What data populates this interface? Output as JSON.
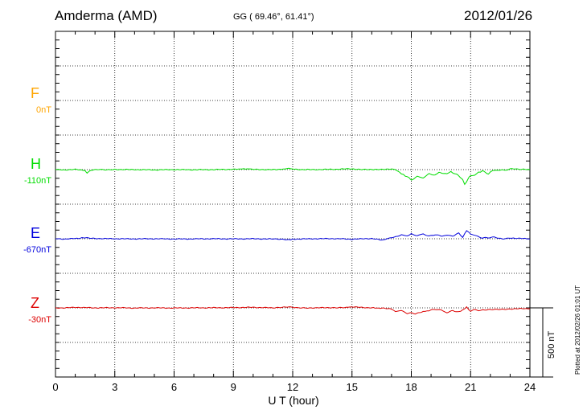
{
  "header": {
    "station": "Amderma (AMD)",
    "coords": "GG ( 69.46°,  61.41°)",
    "date": "2012/01/26"
  },
  "side_note": "Plotted at 2012/02/26 01:01 UT",
  "scale_label": "500 nT",
  "chart_data": {
    "type": "line",
    "xlabel": "U T (hour)",
    "xlim": [
      0,
      24
    ],
    "xticks": [
      "0",
      "3",
      "6",
      "9",
      "12",
      "15",
      "18",
      "21",
      "24"
    ],
    "grid": true,
    "channels": [
      {
        "letter": "F",
        "offset": "0nT",
        "color": "#ffa500",
        "values": []
      },
      {
        "letter": "H",
        "offset": "-110nT",
        "color": "#00dd00",
        "values": [
          [
            0,
            0
          ],
          [
            0.5,
            -2
          ],
          [
            1,
            1
          ],
          [
            1.5,
            -5
          ],
          [
            1.6,
            -25
          ],
          [
            1.8,
            -3
          ],
          [
            2.2,
            3
          ],
          [
            2.6,
            -1
          ],
          [
            3,
            1
          ],
          [
            4,
            0
          ],
          [
            5,
            -2
          ],
          [
            6,
            0
          ],
          [
            7,
            -1
          ],
          [
            8,
            0
          ],
          [
            9,
            3
          ],
          [
            9.7,
            6
          ],
          [
            10,
            1
          ],
          [
            11,
            0
          ],
          [
            11.6,
            3
          ],
          [
            11.8,
            10
          ],
          [
            12,
            4
          ],
          [
            12.5,
            0
          ],
          [
            13,
            0
          ],
          [
            14,
            2
          ],
          [
            14.5,
            4
          ],
          [
            15,
            6
          ],
          [
            15.5,
            0
          ],
          [
            16,
            2
          ],
          [
            16.5,
            0
          ],
          [
            17,
            6
          ],
          [
            17.3,
            -8
          ],
          [
            17.5,
            -30
          ],
          [
            17.7,
            -45
          ],
          [
            17.9,
            -60
          ],
          [
            18,
            -75
          ],
          [
            18.3,
            -50
          ],
          [
            18.6,
            -60
          ],
          [
            18.9,
            -30
          ],
          [
            19.2,
            -40
          ],
          [
            19.4,
            -20
          ],
          [
            19.8,
            -30
          ],
          [
            20,
            -15
          ],
          [
            20.3,
            -35
          ],
          [
            20.6,
            -70
          ],
          [
            20.7,
            -110
          ],
          [
            20.9,
            -60
          ],
          [
            21,
            -45
          ],
          [
            21.2,
            -40
          ],
          [
            21.4,
            -20
          ],
          [
            21.6,
            -10
          ],
          [
            21.9,
            -30
          ],
          [
            22.1,
            -8
          ],
          [
            22.4,
            -5
          ],
          [
            22.8,
            -3
          ],
          [
            23.1,
            6
          ],
          [
            23.5,
            2
          ],
          [
            24,
            0
          ]
        ]
      },
      {
        "letter": "E",
        "offset": "-670nT",
        "color": "#0000dd",
        "values": [
          [
            0,
            0
          ],
          [
            0.5,
            -2
          ],
          [
            1,
            2
          ],
          [
            1.6,
            8
          ],
          [
            2,
            2
          ],
          [
            3,
            0
          ],
          [
            4,
            -1
          ],
          [
            5,
            0
          ],
          [
            6,
            -2
          ],
          [
            7,
            -1
          ],
          [
            8,
            0
          ],
          [
            9,
            -1
          ],
          [
            10,
            0
          ],
          [
            11,
            -2
          ],
          [
            11.8,
            -8
          ],
          [
            12,
            -3
          ],
          [
            13,
            0
          ],
          [
            14,
            1
          ],
          [
            15,
            -3
          ],
          [
            16,
            2
          ],
          [
            16.5,
            -10
          ],
          [
            16.7,
            -5
          ],
          [
            17,
            10
          ],
          [
            17.3,
            15
          ],
          [
            17.5,
            30
          ],
          [
            17.8,
            20
          ],
          [
            18,
            35
          ],
          [
            18.3,
            22
          ],
          [
            18.6,
            35
          ],
          [
            18.9,
            18
          ],
          [
            19.2,
            30
          ],
          [
            19.5,
            20
          ],
          [
            19.8,
            25
          ],
          [
            20.1,
            20
          ],
          [
            20.4,
            40
          ],
          [
            20.6,
            10
          ],
          [
            20.8,
            60
          ],
          [
            21,
            35
          ],
          [
            21.3,
            20
          ],
          [
            21.6,
            5
          ],
          [
            21.9,
            8
          ],
          [
            22.2,
            12
          ],
          [
            22.6,
            0
          ],
          [
            23,
            6
          ],
          [
            23.5,
            2
          ],
          [
            24,
            0
          ]
        ]
      },
      {
        "letter": "Z",
        "offset": "-30nT",
        "color": "#dd0000",
        "values": [
          [
            0,
            0
          ],
          [
            0.5,
            0
          ],
          [
            1,
            4
          ],
          [
            2,
            0
          ],
          [
            3,
            1
          ],
          [
            4,
            -1
          ],
          [
            5,
            0
          ],
          [
            6,
            -1
          ],
          [
            7,
            0
          ],
          [
            8,
            1
          ],
          [
            9,
            2
          ],
          [
            10,
            4
          ],
          [
            11,
            0
          ],
          [
            11.8,
            6
          ],
          [
            12.2,
            0
          ],
          [
            13,
            0
          ],
          [
            14,
            2
          ],
          [
            14.8,
            4
          ],
          [
            15,
            7
          ],
          [
            16,
            0
          ],
          [
            16.6,
            -3
          ],
          [
            17,
            -10
          ],
          [
            17.2,
            -25
          ],
          [
            17.5,
            -20
          ],
          [
            17.8,
            -40
          ],
          [
            18,
            -35
          ],
          [
            18.2,
            -45
          ],
          [
            18.5,
            -30
          ],
          [
            18.7,
            -25
          ],
          [
            18.9,
            -20
          ],
          [
            19.2,
            -10
          ],
          [
            19.5,
            -15
          ],
          [
            19.8,
            -35
          ],
          [
            20.1,
            -20
          ],
          [
            20.4,
            -30
          ],
          [
            20.6,
            -15
          ],
          [
            20.8,
            5
          ],
          [
            21,
            -25
          ],
          [
            21.2,
            -10
          ],
          [
            21.4,
            -20
          ],
          [
            21.8,
            -15
          ],
          [
            22.2,
            -12
          ],
          [
            22.6,
            -10
          ],
          [
            23,
            -8
          ],
          [
            23.5,
            -6
          ],
          [
            24,
            -5
          ]
        ]
      }
    ]
  }
}
